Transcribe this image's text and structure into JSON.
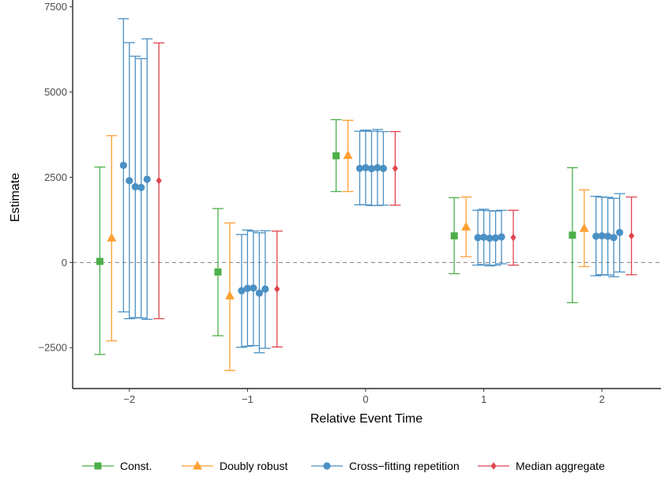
{
  "chart_data": {
    "type": "errorbar",
    "xlabel": "Relative Event Time",
    "ylabel": "Estimate",
    "xticks": [
      -2,
      -1,
      0,
      1,
      2
    ],
    "yticks": [
      -2500,
      0,
      2500,
      5000,
      7500
    ],
    "xlim": [
      -2.48,
      2.5
    ],
    "ylim": [
      -3700,
      7700
    ],
    "reference_line": 0,
    "colors": {
      "const": "#4daf4a",
      "doubly_robust": "#ff9f33",
      "cross_fitting": "#4a90c4",
      "median": "#e0454f"
    },
    "legend": [
      {
        "key": "const",
        "label": "Const.",
        "marker": "square"
      },
      {
        "key": "doubly_robust",
        "label": "Doubly robust",
        "marker": "triangle"
      },
      {
        "key": "cross_fitting",
        "label": "Cross−fitting repetition",
        "marker": "circle"
      },
      {
        "key": "median",
        "label": "Median aggregate",
        "marker": "diamond"
      }
    ],
    "series": [
      {
        "key": "const",
        "points": [
          {
            "x": -2.25,
            "y": 30,
            "low": -2700,
            "high": 2800
          },
          {
            "x": -1.25,
            "y": -280,
            "low": -2150,
            "high": 1580
          },
          {
            "x": -0.25,
            "y": 3130,
            "low": 2080,
            "high": 4190
          },
          {
            "x": 0.75,
            "y": 780,
            "low": -330,
            "high": 1900
          },
          {
            "x": 1.75,
            "y": 800,
            "low": -1180,
            "high": 2780
          }
        ]
      },
      {
        "key": "doubly_robust",
        "points": [
          {
            "x": -2.15,
            "y": 720,
            "low": -2300,
            "high": 3720
          },
          {
            "x": -1.15,
            "y": -980,
            "low": -3170,
            "high": 1160
          },
          {
            "x": -0.15,
            "y": 3140,
            "low": 2080,
            "high": 4170
          },
          {
            "x": 0.85,
            "y": 1040,
            "low": 170,
            "high": 1920
          },
          {
            "x": 1.85,
            "y": 1000,
            "low": -120,
            "high": 2130
          }
        ]
      },
      {
        "key": "cross_fitting",
        "points": [
          {
            "x": -2.05,
            "y": 2850,
            "low": -1450,
            "high": 7150
          },
          {
            "x": -2.0,
            "y": 2400,
            "low": -1650,
            "high": 6450
          },
          {
            "x": -1.95,
            "y": 2220,
            "low": -1620,
            "high": 6050
          },
          {
            "x": -1.9,
            "y": 2200,
            "low": -1630,
            "high": 5980
          },
          {
            "x": -1.85,
            "y": 2440,
            "low": -1670,
            "high": 6560
          },
          {
            "x": -1.05,
            "y": -830,
            "low": -2490,
            "high": 820
          },
          {
            "x": -1.0,
            "y": -760,
            "low": -2460,
            "high": 950
          },
          {
            "x": -0.95,
            "y": -750,
            "low": -2440,
            "high": 920
          },
          {
            "x": -0.9,
            "y": -900,
            "low": -2650,
            "high": 870
          },
          {
            "x": -0.85,
            "y": -780,
            "low": -2520,
            "high": 930
          },
          {
            "x": -0.05,
            "y": 2760,
            "low": 1690,
            "high": 3850
          },
          {
            "x": 0.0,
            "y": 2780,
            "low": 1690,
            "high": 3880
          },
          {
            "x": 0.05,
            "y": 2750,
            "low": 1670,
            "high": 3850
          },
          {
            "x": 0.1,
            "y": 2780,
            "low": 1670,
            "high": 3900
          },
          {
            "x": 0.15,
            "y": 2760,
            "low": 1680,
            "high": 3840
          },
          {
            "x": 0.95,
            "y": 730,
            "low": -80,
            "high": 1530
          },
          {
            "x": 1.0,
            "y": 740,
            "low": -60,
            "high": 1560
          },
          {
            "x": 1.05,
            "y": 710,
            "low": -100,
            "high": 1520
          },
          {
            "x": 1.1,
            "y": 720,
            "low": -80,
            "high": 1510
          },
          {
            "x": 1.15,
            "y": 750,
            "low": -40,
            "high": 1530
          },
          {
            "x": 1.95,
            "y": 770,
            "low": -390,
            "high": 1940
          },
          {
            "x": 2.0,
            "y": 780,
            "low": -360,
            "high": 1920
          },
          {
            "x": 2.05,
            "y": 770,
            "low": -370,
            "high": 1910
          },
          {
            "x": 2.1,
            "y": 730,
            "low": -420,
            "high": 1880
          },
          {
            "x": 2.15,
            "y": 880,
            "low": -280,
            "high": 2020
          }
        ]
      },
      {
        "key": "median",
        "points": [
          {
            "x": -1.75,
            "y": 2400,
            "low": -1650,
            "high": 6440
          },
          {
            "x": -0.75,
            "y": -780,
            "low": -2480,
            "high": 920
          },
          {
            "x": 0.25,
            "y": 2760,
            "low": 1680,
            "high": 3840
          },
          {
            "x": 1.25,
            "y": 730,
            "low": -80,
            "high": 1530
          },
          {
            "x": 2.25,
            "y": 780,
            "low": -360,
            "high": 1920
          }
        ]
      }
    ]
  }
}
